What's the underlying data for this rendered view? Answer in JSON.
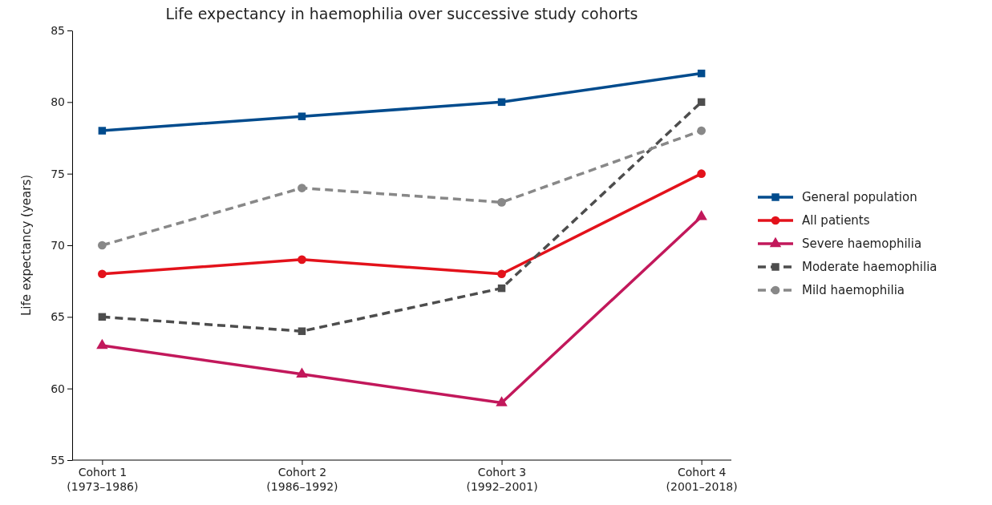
{
  "chart_data": {
    "type": "line",
    "title": "Life expectancy in haemophilia over successive study cohorts",
    "ylabel": "Life expectancy (years)",
    "categories": [
      "Cohort 1\n(1973–1986)",
      "Cohort 2\n(1986–1992)",
      "Cohort 3\n(1992–2001)",
      "Cohort 4\n(2001–2018)"
    ],
    "ylim": [
      55,
      85
    ],
    "yticks": [
      55,
      60,
      65,
      70,
      75,
      80,
      85
    ],
    "legend": "right",
    "series": [
      {
        "name": "General population",
        "color": "#004b8d",
        "values": [
          78,
          79,
          80,
          82
        ],
        "marker": "square",
        "line_style": "solid"
      },
      {
        "name": "All patients",
        "color": "#e3121b",
        "values": [
          68,
          69,
          68,
          75
        ],
        "marker": "circle",
        "line_style": "solid"
      },
      {
        "name": "Severe haemophilia",
        "color": "#c2185b",
        "values": [
          63,
          61,
          59,
          72
        ],
        "marker": "triangle",
        "line_style": "solid"
      },
      {
        "name": "Moderate haemophilia",
        "color": "#4d4d4d",
        "values": [
          65,
          64,
          67,
          80
        ],
        "marker": "square",
        "line_style": "dashed"
      },
      {
        "name": "Mild haemophilia",
        "color": "#888888",
        "values": [
          70,
          74,
          73,
          78
        ],
        "marker": "circle",
        "line_style": "dashed"
      }
    ]
  }
}
